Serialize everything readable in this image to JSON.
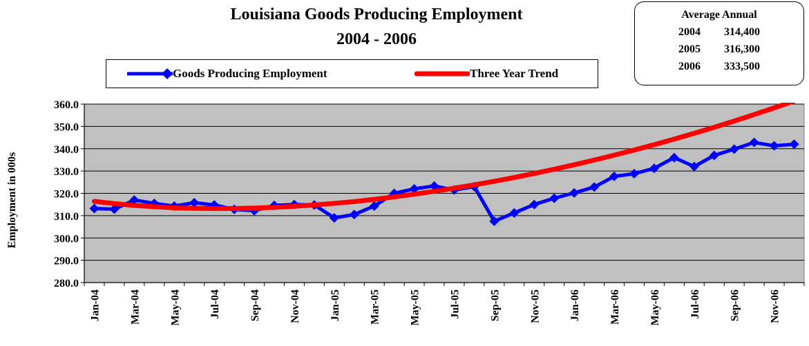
{
  "chart_data": {
    "type": "line",
    "title": "Louisiana Goods Producing Employment",
    "subtitle": "2004 - 2006",
    "ylabel": "Employment in 000s",
    "xlabel": "",
    "ylim": [
      280,
      360
    ],
    "y_ticks": [
      "280.0",
      "290.0",
      "300.0",
      "310.0",
      "320.0",
      "330.0",
      "340.0",
      "350.0",
      "360.0"
    ],
    "x_tick_labels": [
      "Jan-04",
      "Mar-04",
      "May-04",
      "Jul-04",
      "Sep-04",
      "Nov-04",
      "Jan-05",
      "Mar-05",
      "May-05",
      "Jul-05",
      "Sep-05",
      "Nov-05",
      "Jan-06",
      "Mar-06",
      "May-06",
      "Jul-06",
      "Sep-06",
      "Nov-06"
    ],
    "months": [
      "Jan-04",
      "Feb-04",
      "Mar-04",
      "Apr-04",
      "May-04",
      "Jun-04",
      "Jul-04",
      "Aug-04",
      "Sep-04",
      "Oct-04",
      "Nov-04",
      "Dec-04",
      "Jan-05",
      "Feb-05",
      "Mar-05",
      "Apr-05",
      "May-05",
      "Jun-05",
      "Jul-05",
      "Aug-05",
      "Sep-05",
      "Oct-05",
      "Nov-05",
      "Dec-05",
      "Jan-06",
      "Feb-06",
      "Mar-06",
      "Apr-06",
      "May-06",
      "Jun-06",
      "Jul-06",
      "Aug-06",
      "Sep-06",
      "Oct-06",
      "Nov-06",
      "Dec-06"
    ],
    "series": [
      {
        "name": "Goods Producing Employment",
        "color": "#0000ff",
        "marker": "diamond",
        "values": [
          313.2,
          312.9,
          317.0,
          315.5,
          314.3,
          315.8,
          314.8,
          312.8,
          312.2,
          314.6,
          315.0,
          314.8,
          309.0,
          310.5,
          314.3,
          320.0,
          322.0,
          323.3,
          321.5,
          323.0,
          307.5,
          311.2,
          315.0,
          317.8,
          320.2,
          322.8,
          327.6,
          328.8,
          331.2,
          336.0,
          332.0,
          337.0,
          339.8,
          342.8,
          341.3,
          342.0
        ]
      },
      {
        "name": "Three Year Trend",
        "color": "#ff0000",
        "marker": "none",
        "values": [
          316.4,
          315.4,
          314.6,
          314.0,
          313.5,
          313.3,
          313.2,
          313.2,
          313.4,
          313.7,
          314.2,
          314.8,
          315.5,
          316.3,
          317.3,
          318.4,
          319.6,
          320.9,
          322.3,
          323.8,
          325.4,
          327.1,
          328.9,
          330.8,
          332.8,
          334.9,
          337.1,
          339.4,
          341.8,
          344.3,
          346.9,
          349.6,
          352.4,
          355.3,
          358.3,
          361.4
        ]
      }
    ],
    "grid": true,
    "legend_position": "top"
  },
  "average_annual": {
    "title": "Average Annual",
    "rows": [
      {
        "year": "2004",
        "value": "314,400"
      },
      {
        "year": "2005",
        "value": "316,300"
      },
      {
        "year": "2006",
        "value": "333,500"
      }
    ]
  }
}
